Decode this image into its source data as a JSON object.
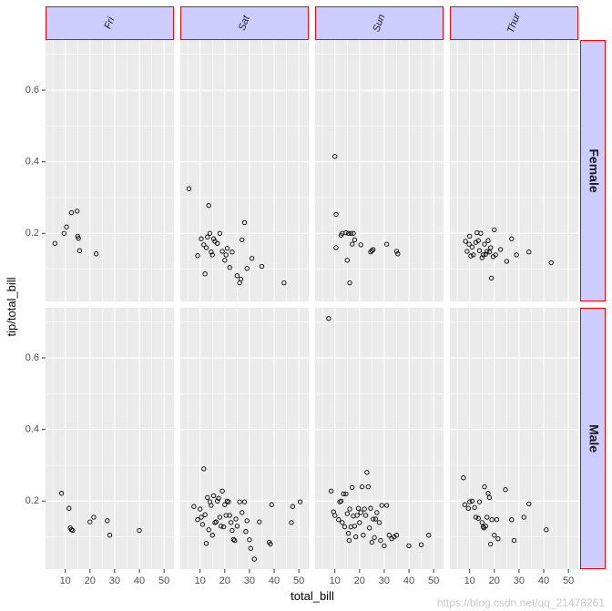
{
  "chart_data": {
    "type": "scatter",
    "xlabel": "total_bill",
    "ylabel": "tip/total_bill",
    "xlim": [
      2,
      54
    ],
    "ylim": [
      0.01,
      0.74
    ],
    "x_ticks": [
      10,
      20,
      30,
      40,
      50
    ],
    "y_ticks": [
      0.2,
      0.4,
      0.6
    ],
    "y_tick_labels": [
      "0.2",
      "0.4",
      "0.6"
    ],
    "columns": [
      "Fri",
      "Sat",
      "Sun",
      "Thur"
    ],
    "rows": [
      "Female",
      "Male"
    ],
    "grid": true,
    "colors": {
      "panel_bg": "#ebebeb",
      "grid": "#ffffff",
      "strip_fill": "#ccccff",
      "strip_border": "#ff0000",
      "point_stroke": "#000000"
    },
    "panels": [
      {
        "row": "Female",
        "col": "Fri",
        "points": [
          [
            5.8,
            0.172
          ],
          [
            9.5,
            0.2
          ],
          [
            10.5,
            0.218
          ],
          [
            12.5,
            0.258
          ],
          [
            14.8,
            0.262
          ],
          [
            15,
            0.192
          ],
          [
            15.3,
            0.186
          ],
          [
            15.8,
            0.152
          ],
          [
            22.5,
            0.143
          ]
        ]
      },
      {
        "row": "Female",
        "col": "Sat",
        "points": [
          [
            5.5,
            0.325
          ],
          [
            9,
            0.138
          ],
          [
            10.5,
            0.185
          ],
          [
            11.5,
            0.168
          ],
          [
            12,
            0.087
          ],
          [
            12.5,
            0.16
          ],
          [
            13,
            0.19
          ],
          [
            13.5,
            0.278
          ],
          [
            14,
            0.2
          ],
          [
            14.5,
            0.148
          ],
          [
            15,
            0.14
          ],
          [
            15.5,
            0.185
          ],
          [
            16,
            0.178
          ],
          [
            17,
            0.172
          ],
          [
            18,
            0.2
          ],
          [
            19,
            0.15
          ],
          [
            20,
            0.125
          ],
          [
            20.5,
            0.14
          ],
          [
            21,
            0.158
          ],
          [
            22,
            0.105
          ],
          [
            23,
            0.148
          ],
          [
            25,
            0.082
          ],
          [
            26,
            0.062
          ],
          [
            26.5,
            0.072
          ],
          [
            27,
            0.182
          ],
          [
            28,
            0.23
          ],
          [
            29,
            0.102
          ],
          [
            31,
            0.13
          ],
          [
            35,
            0.108
          ],
          [
            44,
            0.062
          ]
        ]
      },
      {
        "row": "Female",
        "col": "Sun",
        "points": [
          [
            10,
            0.415
          ],
          [
            10.5,
            0.253
          ],
          [
            10.5,
            0.16
          ],
          [
            12.5,
            0.195
          ],
          [
            13,
            0.2
          ],
          [
            14.5,
            0.202
          ],
          [
            15,
            0.125
          ],
          [
            15.5,
            0.2
          ],
          [
            16,
            0.062
          ],
          [
            16.5,
            0.2
          ],
          [
            17,
            0.17
          ],
          [
            17.5,
            0.2
          ],
          [
            18,
            0.182
          ],
          [
            20.5,
            0.168
          ],
          [
            24.5,
            0.148
          ],
          [
            25,
            0.152
          ],
          [
            25.5,
            0.155
          ],
          [
            31,
            0.17
          ],
          [
            35,
            0.15
          ],
          [
            35.5,
            0.143
          ]
        ]
      },
      {
        "row": "Female",
        "col": "Thur",
        "points": [
          [
            8.3,
            0.178
          ],
          [
            9,
            0.15
          ],
          [
            9.8,
            0.17
          ],
          [
            10,
            0.192
          ],
          [
            10.5,
            0.137
          ],
          [
            11,
            0.162
          ],
          [
            11.5,
            0.14
          ],
          [
            12.5,
            0.175
          ],
          [
            13,
            0.202
          ],
          [
            13.5,
            0.18
          ],
          [
            14,
            0.152
          ],
          [
            14.5,
            0.2
          ],
          [
            15,
            0.132
          ],
          [
            15.5,
            0.14
          ],
          [
            16,
            0.17
          ],
          [
            16.5,
            0.142
          ],
          [
            17,
            0.15
          ],
          [
            17.5,
            0.18
          ],
          [
            18,
            0.148
          ],
          [
            18.5,
            0.16
          ],
          [
            18.8,
            0.075
          ],
          [
            19.5,
            0.135
          ],
          [
            20,
            0.21
          ],
          [
            20.5,
            0.14
          ],
          [
            22.5,
            0.155
          ],
          [
            25,
            0.122
          ],
          [
            27,
            0.185
          ],
          [
            29,
            0.14
          ],
          [
            34,
            0.148
          ],
          [
            43,
            0.118
          ]
        ]
      },
      {
        "row": "Male",
        "col": "Fri",
        "points": [
          [
            8.5,
            0.222
          ],
          [
            11.5,
            0.18
          ],
          [
            12,
            0.125
          ],
          [
            12.5,
            0.12
          ],
          [
            13,
            0.118
          ],
          [
            20,
            0.142
          ],
          [
            21.5,
            0.155
          ],
          [
            27,
            0.145
          ],
          [
            28,
            0.105
          ],
          [
            40,
            0.118
          ]
        ]
      },
      {
        "row": "Male",
        "col": "Sat",
        "points": [
          [
            7.5,
            0.185
          ],
          [
            9,
            0.148
          ],
          [
            10,
            0.178
          ],
          [
            10.5,
            0.155
          ],
          [
            11,
            0.135
          ],
          [
            11.5,
            0.29
          ],
          [
            12,
            0.162
          ],
          [
            12.5,
            0.082
          ],
          [
            13,
            0.21
          ],
          [
            13.5,
            0.12
          ],
          [
            14,
            0.198
          ],
          [
            14.5,
            0.188
          ],
          [
            15,
            0.105
          ],
          [
            15.5,
            0.215
          ],
          [
            16,
            0.14
          ],
          [
            16.5,
            0.142
          ],
          [
            17,
            0.2
          ],
          [
            17.5,
            0.208
          ],
          [
            18,
            0.155
          ],
          [
            18.5,
            0.13
          ],
          [
            19,
            0.228
          ],
          [
            19.5,
            0.128
          ],
          [
            20,
            0.19
          ],
          [
            20.5,
            0.16
          ],
          [
            21,
            0.2
          ],
          [
            21.5,
            0.198
          ],
          [
            22,
            0.16
          ],
          [
            22.5,
            0.14
          ],
          [
            23,
            0.118
          ],
          [
            23.5,
            0.093
          ],
          [
            24,
            0.09
          ],
          [
            24.5,
            0.15
          ],
          [
            25,
            0.13
          ],
          [
            26,
            0.198
          ],
          [
            27,
            0.168
          ],
          [
            28,
            0.198
          ],
          [
            28.5,
            0.115
          ],
          [
            29,
            0.145
          ],
          [
            30,
            0.092
          ],
          [
            30.5,
            0.068
          ],
          [
            32,
            0.038
          ],
          [
            34,
            0.142
          ],
          [
            38,
            0.085
          ],
          [
            38.5,
            0.08
          ],
          [
            39,
            0.19
          ],
          [
            47,
            0.14
          ],
          [
            47.5,
            0.185
          ],
          [
            50.5,
            0.198
          ]
        ]
      },
      {
        "row": "Male",
        "col": "Sun",
        "points": [
          [
            7.5,
            0.71
          ],
          [
            8.5,
            0.228
          ],
          [
            9.5,
            0.17
          ],
          [
            10,
            0.16
          ],
          [
            11.5,
            0.148
          ],
          [
            12,
            0.198
          ],
          [
            12.5,
            0.2
          ],
          [
            13,
            0.14
          ],
          [
            13.5,
            0.22
          ],
          [
            14,
            0.128
          ],
          [
            14.5,
            0.22
          ],
          [
            15,
            0.165
          ],
          [
            15.5,
            0.11
          ],
          [
            15.8,
            0.09
          ],
          [
            16,
            0.178
          ],
          [
            16.5,
            0.128
          ],
          [
            17,
            0.238
          ],
          [
            17.5,
            0.158
          ],
          [
            18,
            0.13
          ],
          [
            18.5,
            0.1
          ],
          [
            19,
            0.16
          ],
          [
            19.5,
            0.18
          ],
          [
            20,
            0.14
          ],
          [
            20.5,
            0.168
          ],
          [
            21,
            0.24
          ],
          [
            21.5,
            0.105
          ],
          [
            22,
            0.178
          ],
          [
            22.5,
            0.16
          ],
          [
            23,
            0.28
          ],
          [
            23.5,
            0.24
          ],
          [
            24,
            0.125
          ],
          [
            24.5,
            0.18
          ],
          [
            25,
            0.085
          ],
          [
            25.5,
            0.15
          ],
          [
            26,
            0.098
          ],
          [
            26.5,
            0.15
          ],
          [
            27,
            0.168
          ],
          [
            28,
            0.14
          ],
          [
            28.5,
            0.09
          ],
          [
            29,
            0.188
          ],
          [
            30,
            0.075
          ],
          [
            31,
            0.188
          ],
          [
            32,
            0.105
          ],
          [
            33,
            0.095
          ],
          [
            34,
            0.1
          ],
          [
            35,
            0.105
          ],
          [
            40,
            0.075
          ],
          [
            45,
            0.078
          ],
          [
            48,
            0.105
          ]
        ]
      },
      {
        "row": "Male",
        "col": "Thur",
        "points": [
          [
            7.5,
            0.265
          ],
          [
            8,
            0.19
          ],
          [
            9.5,
            0.18
          ],
          [
            10,
            0.198
          ],
          [
            11,
            0.2
          ],
          [
            12,
            0.182
          ],
          [
            12.5,
            0.155
          ],
          [
            13.5,
            0.152
          ],
          [
            14,
            0.198
          ],
          [
            15,
            0.14
          ],
          [
            15.5,
            0.128
          ],
          [
            15.8,
            0.125
          ],
          [
            16,
            0.24
          ],
          [
            16.5,
            0.13
          ],
          [
            17,
            0.155
          ],
          [
            17.5,
            0.222
          ],
          [
            18,
            0.21
          ],
          [
            18.5,
            0.08
          ],
          [
            19,
            0.148
          ],
          [
            20,
            0.105
          ],
          [
            21,
            0.148
          ],
          [
            21.5,
            0.095
          ],
          [
            24.5,
            0.232
          ],
          [
            27,
            0.148
          ],
          [
            28,
            0.09
          ],
          [
            32,
            0.155
          ],
          [
            34,
            0.192
          ],
          [
            41,
            0.12
          ]
        ]
      }
    ]
  }
}
